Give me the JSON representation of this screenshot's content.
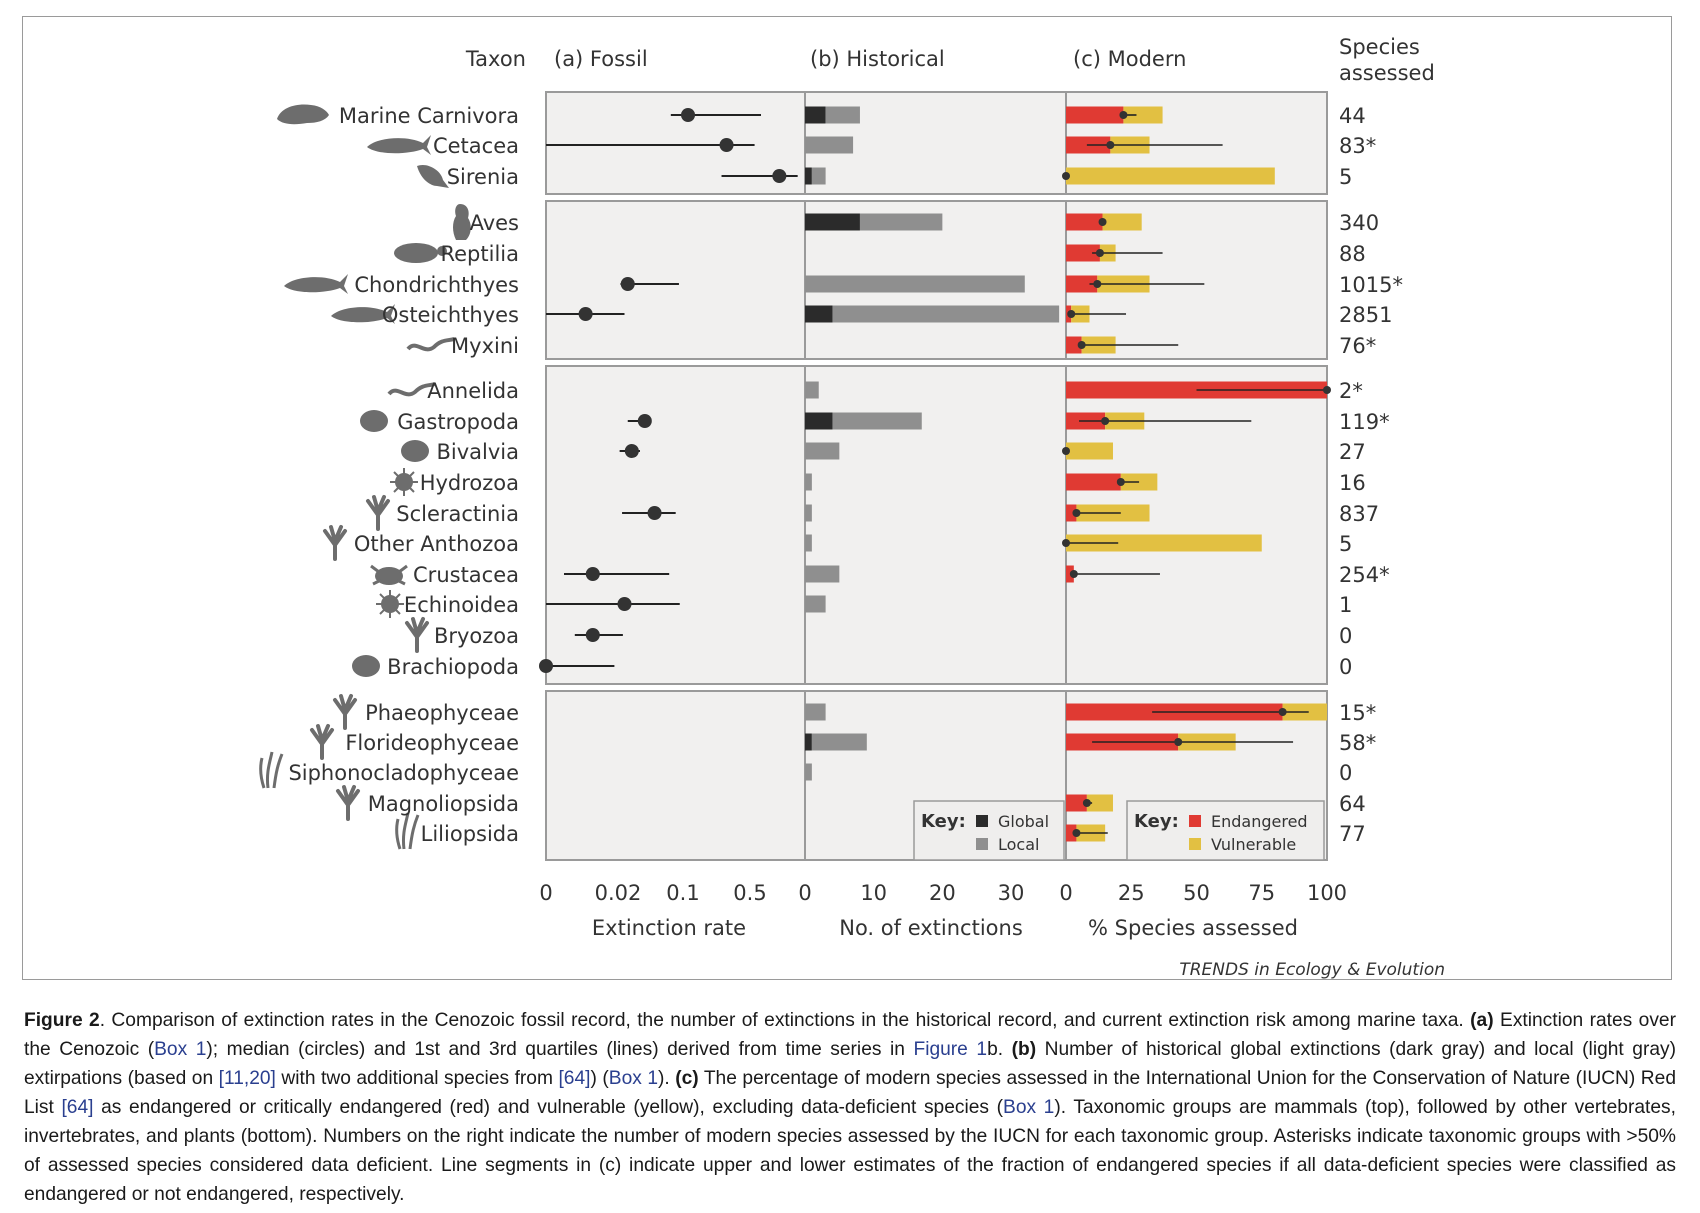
{
  "header": {
    "taxon": "Taxon",
    "fossil": "(a) Fossil",
    "historical": "(b) Historical",
    "modern": "(c) Modern",
    "species_line1": "Species",
    "species_line2": "assessed"
  },
  "colors": {
    "global": "#2b2b2b",
    "local": "#8f8f8f",
    "endangered": "#e03a33",
    "vulnerable": "#e2c042",
    "panel_bg": "#f1f0ef",
    "frame": "#9a9a9a"
  },
  "key_historical": {
    "title": "Key:",
    "global": "Global",
    "local": "Local"
  },
  "key_modern": {
    "title": "Key:",
    "endangered": "Endangered",
    "vulnerable": "Vulnerable"
  },
  "credit": "TRENDS in Ecology & Evolution",
  "chart_data": [
    {
      "type": "scatter",
      "panel": "fossil",
      "title": "(a) Fossil",
      "xlabel": "Extinction rate",
      "x_ticks": [
        "0",
        "0.02",
        "0.1",
        "0.5"
      ],
      "scale": "nonlinear (tick labels 0, 0.02, 0.1, 0.5)",
      "points": [
        {
          "taxon": "Marine Carnivora",
          "median": 0.13,
          "q1": 0.085,
          "q3": 0.62
        },
        {
          "taxon": "Cetacea",
          "median": 0.36,
          "q1": 0,
          "q3": 0.55
        },
        {
          "taxon": "Sirenia",
          "median": 0.82,
          "q1": 0.33,
          "q3": 1.02
        },
        {
          "taxon": "Chondrichthyes",
          "median": 0.032,
          "q1": 0.023,
          "q3": 0.095
        },
        {
          "taxon": "Osteichthyes",
          "median": 0.011,
          "q1": 0,
          "q3": 0.028
        },
        {
          "taxon": "Gastropoda",
          "median": 0.053,
          "q1": 0.032,
          "q3": 0.06
        },
        {
          "taxon": "Bivalvia",
          "median": 0.037,
          "q1": 0.022,
          "q3": 0.047
        },
        {
          "taxon": "Scleractinia",
          "median": 0.065,
          "q1": 0.025,
          "q3": 0.091
        },
        {
          "taxon": "Crustacea",
          "median": 0.013,
          "q1": 0.005,
          "q3": 0.083
        },
        {
          "taxon": "Echinoidea",
          "median": 0.028,
          "q1": 0,
          "q3": 0.096
        },
        {
          "taxon": "Bryozoa",
          "median": 0.013,
          "q1": 0.008,
          "q3": 0.026
        },
        {
          "taxon": "Brachiopoda",
          "median": 0,
          "q1": 0,
          "q3": 0.019
        }
      ]
    },
    {
      "type": "bar",
      "panel": "historical",
      "title": "(b) Historical",
      "xlabel": "No. of extinctions",
      "xlim": [
        0,
        38
      ],
      "x_ticks": [
        0,
        10,
        20,
        30
      ],
      "stacked": true,
      "series_names": [
        "Global",
        "Local"
      ],
      "bars": [
        {
          "taxon": "Marine Carnivora",
          "global": 3,
          "local": 5
        },
        {
          "taxon": "Cetacea",
          "global": 0,
          "local": 7
        },
        {
          "taxon": "Sirenia",
          "global": 1,
          "local": 2
        },
        {
          "taxon": "Aves",
          "global": 8,
          "local": 12
        },
        {
          "taxon": "Reptilia",
          "global": 0,
          "local": 0
        },
        {
          "taxon": "Chondrichthyes",
          "global": 0,
          "local": 32
        },
        {
          "taxon": "Osteichthyes",
          "global": 4,
          "local": 33
        },
        {
          "taxon": "Myxini",
          "global": 0,
          "local": 0
        },
        {
          "taxon": "Annelida",
          "global": 0,
          "local": 2
        },
        {
          "taxon": "Gastropoda",
          "global": 4,
          "local": 13
        },
        {
          "taxon": "Bivalvia",
          "global": 0,
          "local": 5
        },
        {
          "taxon": "Hydrozoa",
          "global": 0,
          "local": 1
        },
        {
          "taxon": "Scleractinia",
          "global": 0,
          "local": 1
        },
        {
          "taxon": "Other Anthozoa",
          "global": 0,
          "local": 1
        },
        {
          "taxon": "Crustacea",
          "global": 0,
          "local": 5
        },
        {
          "taxon": "Echinoidea",
          "global": 0,
          "local": 3
        },
        {
          "taxon": "Bryozoa",
          "global": 0,
          "local": 0
        },
        {
          "taxon": "Brachiopoda",
          "global": 0,
          "local": 0
        },
        {
          "taxon": "Phaeophyceae",
          "global": 0,
          "local": 3
        },
        {
          "taxon": "Florideophyceae",
          "global": 1,
          "local": 8
        },
        {
          "taxon": "Siphonocladophyceae",
          "global": 0,
          "local": 1
        },
        {
          "taxon": "Magnoliopsida",
          "global": 0,
          "local": 0
        },
        {
          "taxon": "Liliopsida",
          "global": 0,
          "local": 0
        }
      ]
    },
    {
      "type": "bar",
      "panel": "modern",
      "title": "(c) Modern",
      "xlabel": "% Species assessed",
      "xlim": [
        0,
        100
      ],
      "x_ticks": [
        0,
        25,
        50,
        75,
        100
      ],
      "stacked": true,
      "series_names": [
        "Endangered",
        "Vulnerable"
      ],
      "bars": [
        {
          "taxon": "Marine Carnivora",
          "assessed": "44",
          "endangered": 22,
          "vulnerable": 15,
          "point": 22,
          "low": 22,
          "high": 27
        },
        {
          "taxon": "Cetacea",
          "assessed": "83*",
          "endangered": 17,
          "vulnerable": 15,
          "point": 17,
          "low": 8,
          "high": 60
        },
        {
          "taxon": "Sirenia",
          "assessed": "5",
          "endangered": 0,
          "vulnerable": 80,
          "point": 0,
          "low": 0,
          "high": 0
        },
        {
          "taxon": "Aves",
          "assessed": "340",
          "endangered": 14,
          "vulnerable": 15,
          "point": 14,
          "low": 14,
          "high": 15
        },
        {
          "taxon": "Reptilia",
          "assessed": "88",
          "endangered": 13,
          "vulnerable": 6,
          "point": 13,
          "low": 10,
          "high": 37
        },
        {
          "taxon": "Chondrichthyes",
          "assessed": "1015*",
          "endangered": 12,
          "vulnerable": 20,
          "point": 12,
          "low": 9,
          "high": 53
        },
        {
          "taxon": "Osteichthyes",
          "assessed": "2851",
          "endangered": 2,
          "vulnerable": 7,
          "point": 2,
          "low": 1,
          "high": 23
        },
        {
          "taxon": "Myxini",
          "assessed": "76*",
          "endangered": 6,
          "vulnerable": 13,
          "point": 6,
          "low": 6,
          "high": 43
        },
        {
          "taxon": "Annelida",
          "assessed": "2*",
          "endangered": 100,
          "vulnerable": 0,
          "point": 100,
          "low": 50,
          "high": 100
        },
        {
          "taxon": "Gastropoda",
          "assessed": "119*",
          "endangered": 15,
          "vulnerable": 15,
          "point": 15,
          "low": 5,
          "high": 71
        },
        {
          "taxon": "Bivalvia",
          "assessed": "27",
          "endangered": 0,
          "vulnerable": 18,
          "point": 0,
          "low": 0,
          "high": 0
        },
        {
          "taxon": "Hydrozoa",
          "assessed": "16",
          "endangered": 21,
          "vulnerable": 14,
          "point": 21,
          "low": 21,
          "high": 28
        },
        {
          "taxon": "Scleractinia",
          "assessed": "837",
          "endangered": 4,
          "vulnerable": 28,
          "point": 4,
          "low": 4,
          "high": 21
        },
        {
          "taxon": "Other Anthozoa",
          "assessed": "5",
          "endangered": 0,
          "vulnerable": 75,
          "point": 0,
          "low": 0,
          "high": 20
        },
        {
          "taxon": "Crustacea",
          "assessed": "254*",
          "endangered": 3,
          "vulnerable": 0,
          "point": 3,
          "low": 3,
          "high": 36
        },
        {
          "taxon": "Echinoidea",
          "assessed": "1",
          "endangered": 0,
          "vulnerable": 0,
          "point": null,
          "low": null,
          "high": null
        },
        {
          "taxon": "Bryozoa",
          "assessed": "0",
          "endangered": 0,
          "vulnerable": 0,
          "point": null,
          "low": null,
          "high": null
        },
        {
          "taxon": "Brachiopoda",
          "assessed": "0",
          "endangered": 0,
          "vulnerable": 0,
          "point": null,
          "low": null,
          "high": null
        },
        {
          "taxon": "Phaeophyceae",
          "assessed": "15*",
          "endangered": 83,
          "vulnerable": 17,
          "point": 83,
          "low": 33,
          "high": 93
        },
        {
          "taxon": "Florideophyceae",
          "assessed": "58*",
          "endangered": 43,
          "vulnerable": 22,
          "point": 43,
          "low": 10,
          "high": 87
        },
        {
          "taxon": "Siphonocladophyceae",
          "assessed": "0",
          "endangered": 0,
          "vulnerable": 0,
          "point": null,
          "low": null,
          "high": null
        },
        {
          "taxon": "Magnoliopsida",
          "assessed": "64",
          "endangered": 8,
          "vulnerable": 10,
          "point": 8,
          "low": 8,
          "high": 10
        },
        {
          "taxon": "Liliopsida",
          "assessed": "77",
          "endangered": 4,
          "vulnerable": 11,
          "point": 4,
          "low": 4,
          "high": 16
        }
      ]
    }
  ],
  "caption": {
    "fig": "Figure 2",
    "t1": ". Comparison of extinction rates in the Cenozoic fossil record, the number of extinctions in the historical record, and current extinction risk among marine taxa. ",
    "a": "(a)",
    "t2": " Extinction rates over the Cenozoic (",
    "box1": "Box 1",
    "t3": "); median (circles) and 1st and 3rd quartiles (lines) derived from time series in ",
    "fig1b": "Figure 1",
    "t4": "b. ",
    "b": "(b)",
    "t5": " Number of historical global extinctions (dark gray) and local (light gray) extirpations (based on ",
    "ref1120": "[11,20]",
    "t6": " with two additional species from ",
    "ref64a": "[64]",
    "t7": ") (",
    "box1b": "Box 1",
    "t8": "). ",
    "c": "(c)",
    "t9": " The percentage of modern species assessed in the International Union for the Conservation of Nature (IUCN) Red List ",
    "ref64b": "[64]",
    "t10": " as endangered or critically endangered (red) and vulnerable (yellow), excluding data-deficient species (",
    "box1c": "Box 1",
    "t11": "). Taxonomic groups are mammals (top), followed by other vertebrates, invertebrates, and plants (bottom). Numbers on the right indicate the number of modern species assessed by the IUCN for each taxonomic group. Asterisks indicate taxonomic groups with >50% of assessed species considered data deficient. Line segments in (c) indicate upper and lower estimates of the fraction of endangered species if all data-deficient species were classified as endangered or not endangered, respectively."
  }
}
